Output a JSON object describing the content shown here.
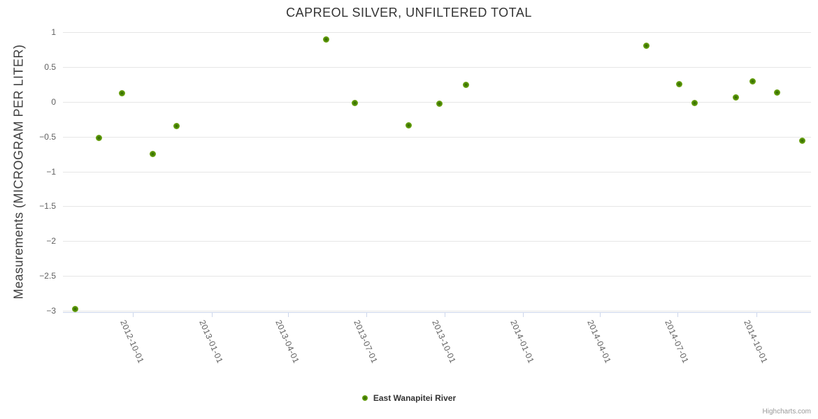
{
  "chart_title": "CAPREOL SILVER, UNFILTERED TOTAL",
  "y_axis_title": "Measurements (MICROGRAM PER LITER)",
  "legend": {
    "series_label": "East Wanapitei River"
  },
  "credits": "Highcharts.com",
  "colors": {
    "marker_outer": "#7eb11c",
    "marker_inner": "#2d6101",
    "grid_line": "#e6e6e6",
    "axis_line": "#ccd6eb",
    "tick_label": "#606060",
    "title": "#333333"
  },
  "chart_data": {
    "type": "scatter",
    "title": "CAPREOL SILVER, UNFILTERED TOTAL",
    "xlabel": "",
    "ylabel": "Measurements (MICROGRAM PER LITER)",
    "x_type": "datetime",
    "grid": "horizontal",
    "legend_position": "bottom-center",
    "x_ticks": [
      "2012-10-01",
      "2013-01-01",
      "2013-04-01",
      "2013-07-01",
      "2013-10-01",
      "2014-01-01",
      "2014-04-01",
      "2014-07-01",
      "2014-10-01"
    ],
    "y_ticks": [
      1,
      0.5,
      0,
      -0.5,
      -1,
      -1.5,
      -2,
      -2.5,
      -3
    ],
    "xlim": [
      "2012-07-11",
      "2014-12-04"
    ],
    "ylim": [
      -3.02,
      1
    ],
    "series": [
      {
        "name": "East Wanapitei River",
        "points": [
          {
            "date": "2012-07-25",
            "value": -2.97
          },
          {
            "date": "2012-08-22",
            "value": -0.52
          },
          {
            "date": "2012-09-18",
            "value": 0.12
          },
          {
            "date": "2012-10-24",
            "value": -0.75
          },
          {
            "date": "2012-11-21",
            "value": -0.35
          },
          {
            "date": "2013-05-15",
            "value": 0.89
          },
          {
            "date": "2013-06-18",
            "value": -0.02
          },
          {
            "date": "2013-08-20",
            "value": -0.34
          },
          {
            "date": "2013-09-25",
            "value": -0.03
          },
          {
            "date": "2013-10-26",
            "value": 0.24
          },
          {
            "date": "2014-05-25",
            "value": 0.8
          },
          {
            "date": "2014-07-03",
            "value": 0.25
          },
          {
            "date": "2014-07-21",
            "value": -0.02
          },
          {
            "date": "2014-09-07",
            "value": 0.06
          },
          {
            "date": "2014-09-27",
            "value": 0.29
          },
          {
            "date": "2014-10-25",
            "value": 0.13
          },
          {
            "date": "2014-11-24",
            "value": -0.56
          }
        ]
      }
    ]
  }
}
